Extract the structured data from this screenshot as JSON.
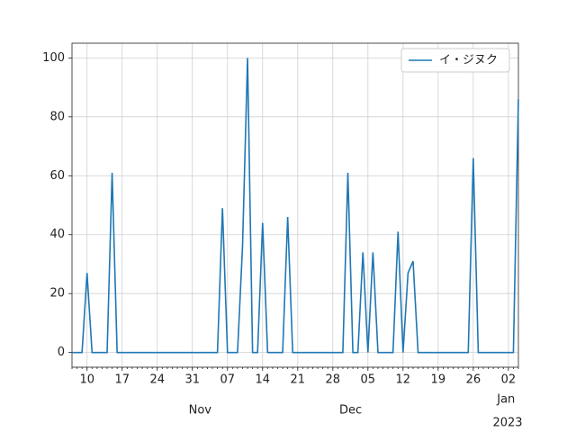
{
  "chart_data": {
    "type": "line",
    "x": [
      "2022-10-07",
      "2022-10-08",
      "2022-10-09",
      "2022-10-10",
      "2022-10-11",
      "2022-10-12",
      "2022-10-13",
      "2022-10-14",
      "2022-10-15",
      "2022-10-16",
      "2022-10-17",
      "2022-10-18",
      "2022-10-19",
      "2022-10-20",
      "2022-10-21",
      "2022-10-22",
      "2022-10-23",
      "2022-10-24",
      "2022-10-25",
      "2022-10-26",
      "2022-10-27",
      "2022-10-28",
      "2022-10-29",
      "2022-10-30",
      "2022-10-31",
      "2022-11-01",
      "2022-11-02",
      "2022-11-03",
      "2022-11-04",
      "2022-11-05",
      "2022-11-06",
      "2022-11-07",
      "2022-11-08",
      "2022-11-09",
      "2022-11-10",
      "2022-11-11",
      "2022-11-12",
      "2022-11-13",
      "2022-11-14",
      "2022-11-15",
      "2022-11-16",
      "2022-11-17",
      "2022-11-18",
      "2022-11-19",
      "2022-11-20",
      "2022-11-21",
      "2022-11-22",
      "2022-11-23",
      "2022-11-24",
      "2022-11-25",
      "2022-11-26",
      "2022-11-27",
      "2022-11-28",
      "2022-11-29",
      "2022-11-30",
      "2022-12-01",
      "2022-12-02",
      "2022-12-03",
      "2022-12-04",
      "2022-12-05",
      "2022-12-06",
      "2022-12-07",
      "2022-12-08",
      "2022-12-09",
      "2022-12-10",
      "2022-12-11",
      "2022-12-12",
      "2022-12-13",
      "2022-12-14",
      "2022-12-15",
      "2022-12-16",
      "2022-12-17",
      "2022-12-18",
      "2022-12-19",
      "2022-12-20",
      "2022-12-21",
      "2022-12-22",
      "2022-12-23",
      "2022-12-24",
      "2022-12-25",
      "2022-12-26",
      "2022-12-27",
      "2022-12-28",
      "2022-12-29",
      "2022-12-30",
      "2022-12-31",
      "2023-01-01",
      "2023-01-02",
      "2023-01-03",
      "2023-01-04"
    ],
    "series": [
      {
        "name": "イ・ジヌク",
        "color": "#1f77b4",
        "values": [
          0,
          0,
          0,
          27,
          0,
          0,
          0,
          0,
          61,
          0,
          0,
          0,
          0,
          0,
          0,
          0,
          0,
          0,
          0,
          0,
          0,
          0,
          0,
          0,
          0,
          0,
          0,
          0,
          0,
          0,
          49,
          0,
          0,
          0,
          36,
          100,
          0,
          0,
          44,
          0,
          0,
          0,
          0,
          46,
          0,
          0,
          0,
          0,
          0,
          0,
          0,
          0,
          0,
          0,
          0,
          61,
          0,
          0,
          34,
          0,
          34,
          0,
          0,
          0,
          0,
          41,
          0,
          27,
          31,
          0,
          0,
          0,
          0,
          0,
          0,
          0,
          0,
          0,
          0,
          0,
          66,
          0,
          0,
          0,
          0,
          0,
          0,
          0,
          0,
          86
        ]
      }
    ],
    "xlim": [
      "2022-10-07",
      "2023-01-04"
    ],
    "xticks": [
      {
        "value": "2022-10-10",
        "label": "10"
      },
      {
        "value": "2022-10-17",
        "label": "17"
      },
      {
        "value": "2022-10-24",
        "label": "24"
      },
      {
        "value": "2022-10-31",
        "label": "31"
      },
      {
        "value": "2022-11-07",
        "label": "07"
      },
      {
        "value": "2022-11-14",
        "label": "14"
      },
      {
        "value": "2022-11-21",
        "label": "21"
      },
      {
        "value": "2022-11-28",
        "label": "28"
      },
      {
        "value": "2022-12-05",
        "label": "05"
      },
      {
        "value": "2022-12-12",
        "label": "12"
      },
      {
        "value": "2022-12-19",
        "label": "19"
      },
      {
        "value": "2022-12-26",
        "label": "26"
      },
      {
        "value": "2023-01-02",
        "label": "02"
      }
    ],
    "month_labels": [
      {
        "value": "2022-11-01",
        "label": "Nov"
      },
      {
        "value": "2022-12-01",
        "label": "Dec"
      },
      {
        "value": "2023-01-01",
        "label": "Jan"
      }
    ],
    "x_offset_label": "2023",
    "ylim": [
      -5,
      105
    ],
    "yticks": [
      0,
      20,
      40,
      60,
      80,
      100
    ],
    "grid": true,
    "legend": "upper right"
  }
}
